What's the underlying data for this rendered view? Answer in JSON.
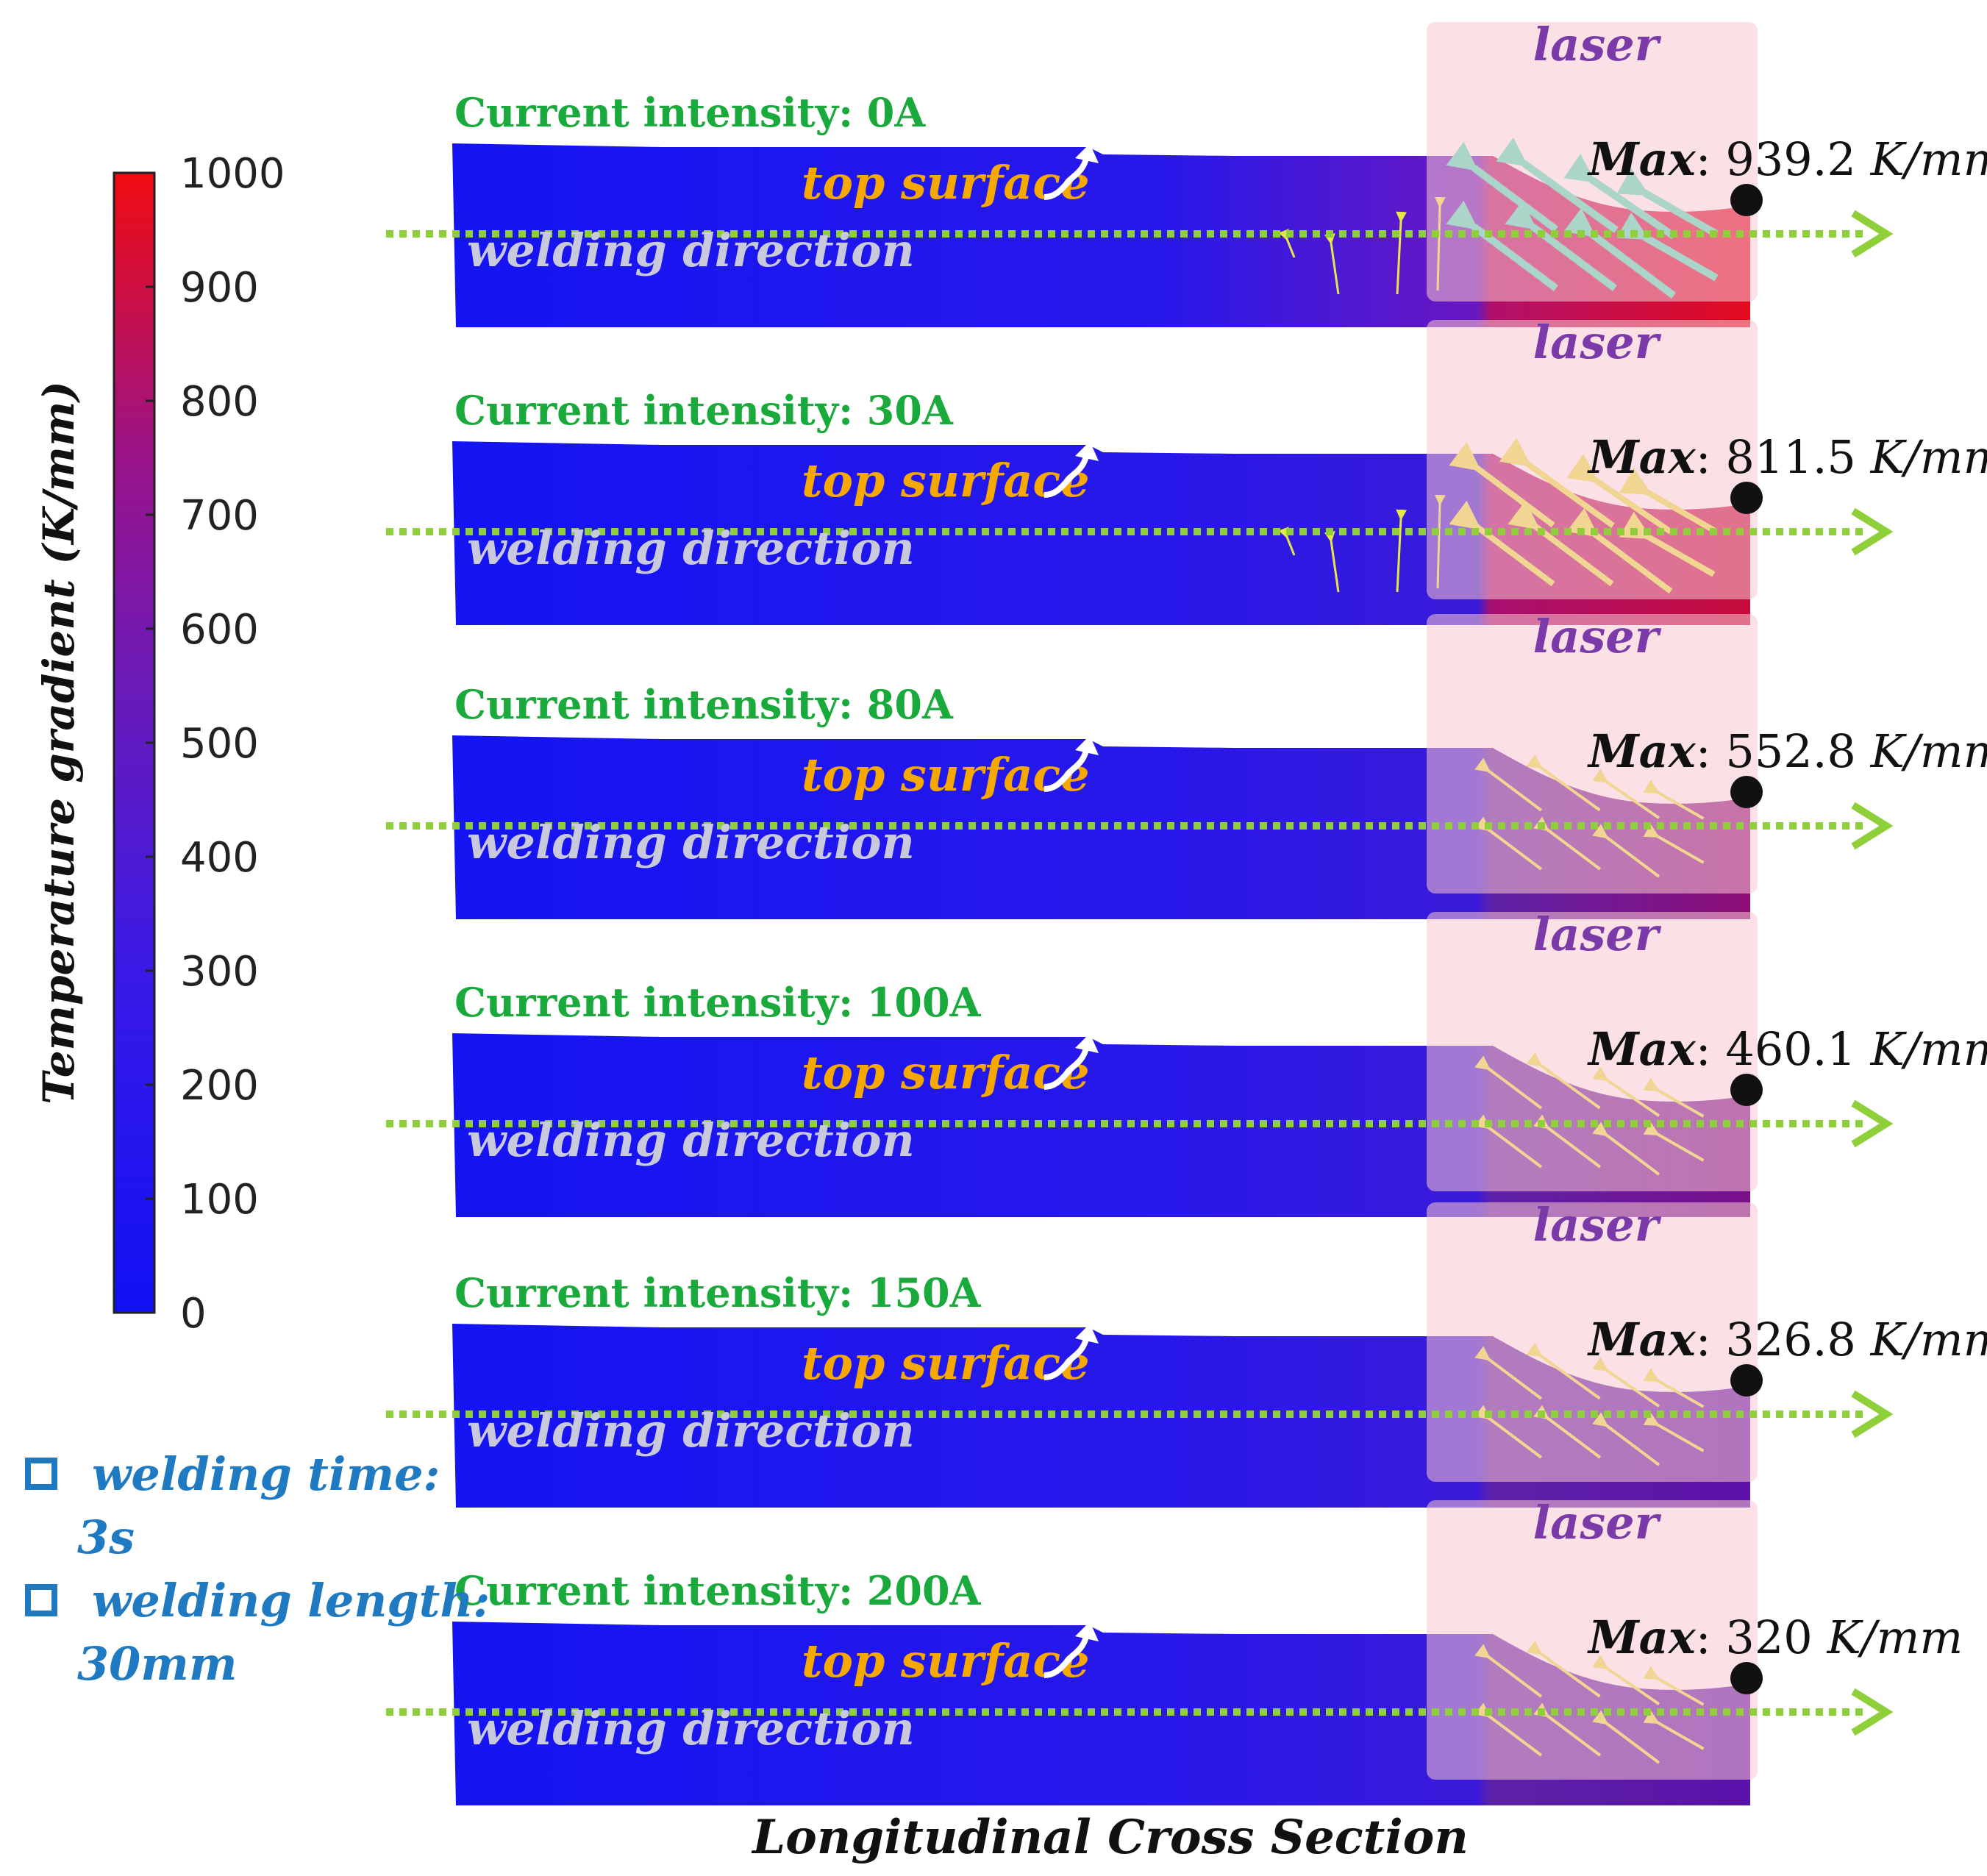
{
  "colorbar": {
    "title": "Temperature gradient (K/mm)",
    "ticks": [
      "1000",
      "900",
      "800",
      "700",
      "600",
      "500",
      "400",
      "300",
      "200",
      "100",
      "0"
    ],
    "range": [
      0,
      1000
    ],
    "colors": {
      "high": "#ee0a12",
      "mid": "#8a1a9a",
      "low": "#1414f2"
    }
  },
  "panels": [
    {
      "current": "Current intensity: 0A",
      "laser": "laser",
      "top_surface": "top surface",
      "welding_direction": "welding direction",
      "max_label": "Max",
      "max_value": ": 939.2 ",
      "max_unit": "K/mm",
      "max_gradient": 939.2
    },
    {
      "current": "Current intensity: 30A",
      "laser": "laser",
      "top_surface": "top surface",
      "welding_direction": "welding direction",
      "max_label": "Max",
      "max_value": ": 811.5 ",
      "max_unit": "K/mm",
      "max_gradient": 811.5
    },
    {
      "current": "Current intensity: 80A",
      "laser": "laser",
      "top_surface": "top surface",
      "welding_direction": "welding direction",
      "max_label": "Max",
      "max_value": ": 552.8 ",
      "max_unit": "K/mm",
      "max_gradient": 552.8
    },
    {
      "current": "Current intensity: 100A",
      "laser": "laser",
      "top_surface": "top surface",
      "welding_direction": "welding direction",
      "max_label": "Max",
      "max_value": ": 460.1 ",
      "max_unit": "K/mm",
      "max_gradient": 460.1
    },
    {
      "current": "Current intensity: 150A",
      "laser": "laser",
      "top_surface": "top surface",
      "welding_direction": "welding direction",
      "max_label": "Max",
      "max_value": ": 326.8 ",
      "max_unit": "K/mm",
      "max_gradient": 326.8
    },
    {
      "current": "Current intensity: 200A",
      "laser": "laser",
      "top_surface": "top surface",
      "welding_direction": "welding direction",
      "max_label": "Max",
      "max_value": ": 320 ",
      "max_unit": "K/mm",
      "max_gradient": 320
    }
  ],
  "notes": {
    "welding_time_label": "welding time:",
    "welding_time_value": "3s",
    "welding_length_label": "welding length:",
    "welding_length_value": "30mm"
  },
  "footer": "Longitudinal Cross Section",
  "colors": {
    "current_label": "#1aaa3c",
    "top_surface": "#f5a800",
    "welding_direction": "#c9c9dd",
    "laser_text": "#7a3aa8",
    "laser_box": "#f7c6cf",
    "direction_arrow": "#8fcf3a",
    "note_blue": "#1f7ac1",
    "vector_cyan": "#4fe6c0",
    "vector_yellow": "#e6e64a"
  }
}
